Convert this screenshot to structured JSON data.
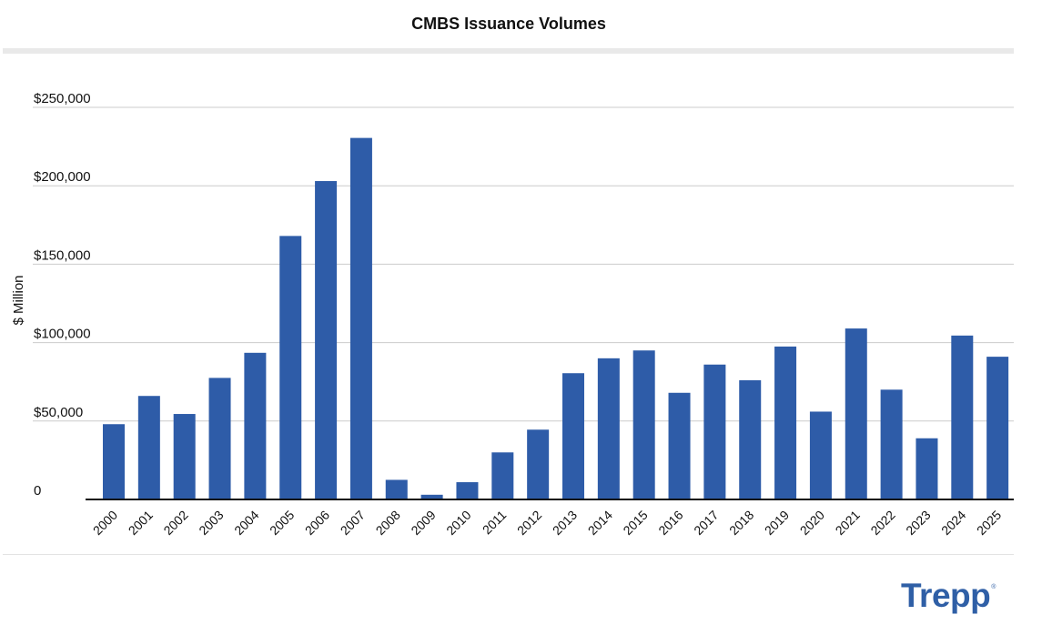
{
  "chart_data": {
    "type": "bar",
    "title": "CMBS Issuance Volumes",
    "ylabel": "$ Million",
    "xlabel": "",
    "categories": [
      "2000",
      "2001",
      "2002",
      "2003",
      "2004",
      "2005",
      "2006",
      "2007",
      "2008",
      "2009",
      "2010",
      "2011",
      "2012",
      "2013",
      "2014",
      "2015",
      "2016",
      "2017",
      "2018",
      "2019",
      "2020",
      "2021",
      "2022",
      "2023",
      "2024",
      "2025"
    ],
    "values": [
      48000,
      66000,
      54500,
      77500,
      93500,
      168000,
      203000,
      230500,
      12500,
      3000,
      11000,
      30000,
      44500,
      80500,
      90000,
      95000,
      68000,
      86000,
      76000,
      97500,
      56000,
      109000,
      70000,
      39000,
      104500,
      91000
    ],
    "ylim": [
      0,
      250000
    ],
    "yticks": [
      0,
      50000,
      100000,
      150000,
      200000,
      250000
    ],
    "ytick_labels": [
      "0",
      "$50,000",
      "$100,000",
      "$150,000",
      "$200,000",
      "$250,000"
    ],
    "bar_color": "#2e5ca8",
    "grid": true,
    "legend": "none"
  },
  "branding": {
    "logo_text": "Trepp",
    "logo_mark": "®",
    "logo_color": "#2f5fa6"
  }
}
